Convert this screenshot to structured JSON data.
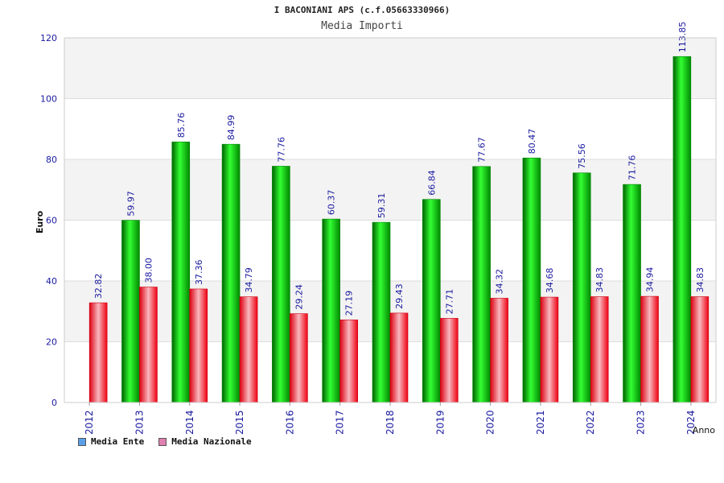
{
  "chart_data": {
    "type": "bar",
    "title": "I BACONIANI APS (c.f.05663330966)",
    "subtitle": "Media Importi",
    "xlabel": "Anno",
    "ylabel": "Euro",
    "ylim": [
      0,
      120
    ],
    "yticks": [
      "0",
      "20",
      "40",
      "60",
      "80",
      "100",
      "120"
    ],
    "categories": [
      "2012",
      "2013",
      "2014",
      "2015",
      "2016",
      "2017",
      "2018",
      "2019",
      "2020",
      "2021",
      "2022",
      "2023",
      "2024"
    ],
    "series": [
      {
        "name": "Media Ente",
        "color": "#00cc00",
        "legend_color": "#5aa0e8",
        "values": [
          null,
          59.97,
          85.76,
          84.99,
          77.76,
          60.37,
          59.31,
          66.84,
          77.67,
          80.47,
          75.56,
          71.76,
          113.85
        ],
        "labels": [
          "",
          "59.97",
          "85.76",
          "84.99",
          "77.76",
          "60.37",
          "59.31",
          "66.84",
          "77.67",
          "80.47",
          "75.56",
          "71.76",
          "113.85"
        ]
      },
      {
        "name": "Media Nazionale",
        "color": "#ee1122",
        "legend_color": "#e080b0",
        "values": [
          32.82,
          38.0,
          37.36,
          34.79,
          29.24,
          27.19,
          29.43,
          27.71,
          34.32,
          34.68,
          34.83,
          34.94,
          34.83
        ],
        "labels": [
          "32.82",
          "38.00",
          "37.36",
          "34.79",
          "29.24",
          "27.19",
          "29.43",
          "27.71",
          "34.32",
          "34.68",
          "34.83",
          "34.94",
          "34.83"
        ]
      }
    ],
    "grid": true,
    "legend_position": "bottom-left"
  }
}
